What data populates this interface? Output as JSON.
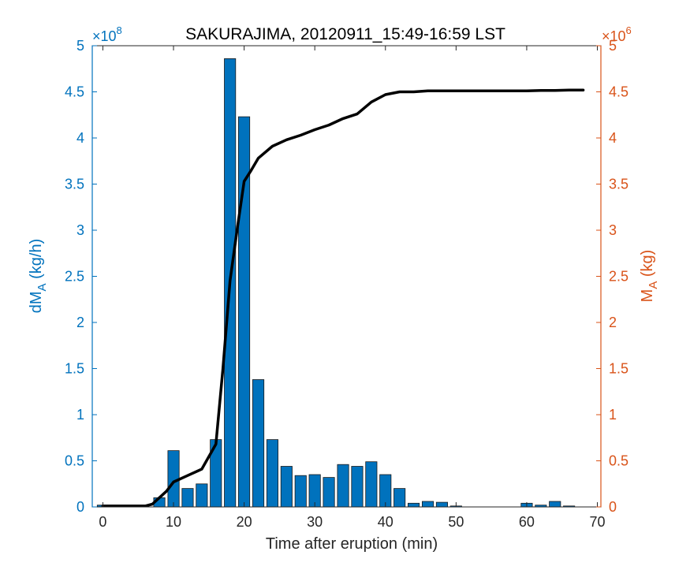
{
  "chart_data": {
    "type": "bar",
    "title": "SAKURAJIMA, 20120911_15:49-16:59 LST",
    "xlabel": "Time after eruption (min)",
    "ylabel_left": {
      "main": "dM",
      "sub": "A",
      "unit": " (kg/h)"
    },
    "ylabel_right": {
      "main": "M",
      "sub": "A",
      "unit": " (kg)"
    },
    "left_exponent": {
      "base": "×10",
      "power": "8"
    },
    "right_exponent": {
      "base": "×10",
      "power": "6"
    },
    "xlim": [
      -1.5,
      70.5
    ],
    "ylim_left": [
      0,
      5
    ],
    "ylim_right": [
      0,
      5
    ],
    "x_ticks": [
      0,
      10,
      20,
      30,
      40,
      50,
      60,
      70
    ],
    "y_ticks_left": [
      "0",
      "0.5",
      "1",
      "1.5",
      "2",
      "2.5",
      "3",
      "3.5",
      "4",
      "4.5",
      "5"
    ],
    "y_ticks_right": [
      "0",
      "0.5",
      "1",
      "1.5",
      "2",
      "2.5",
      "3",
      "3.5",
      "4",
      "4.5",
      "5"
    ],
    "colors": {
      "left_axis": "#0072BD",
      "right_axis": "#D95319",
      "bars": "#0072BD",
      "line": "#000000"
    },
    "series": [
      {
        "axis": "left",
        "kind": "bar",
        "x": [
          0,
          2,
          4,
          6,
          8,
          10,
          12,
          14,
          16,
          18,
          20,
          22,
          24,
          26,
          28,
          30,
          32,
          34,
          36,
          38,
          40,
          42,
          44,
          46,
          48,
          50,
          52,
          54,
          56,
          58,
          60,
          62,
          64,
          66,
          68
        ],
        "values": [
          0.02,
          0,
          0,
          0,
          0.1,
          0.61,
          0.2,
          0.25,
          0.73,
          4.86,
          4.23,
          1.38,
          0.73,
          0.44,
          0.34,
          0.35,
          0.32,
          0.46,
          0.44,
          0.49,
          0.35,
          0.2,
          0.04,
          0.06,
          0.05,
          0.01,
          0,
          0,
          0,
          0,
          0.04,
          0.02,
          0.06,
          0.01,
          0
        ]
      },
      {
        "axis": "right",
        "kind": "line",
        "x": [
          0,
          2,
          4,
          6,
          7,
          8,
          9,
          10,
          12,
          14,
          16,
          17,
          18,
          19,
          20,
          21,
          22,
          24,
          26,
          28,
          30,
          32,
          34,
          36,
          38,
          40,
          42,
          44,
          46,
          48,
          50,
          52,
          54,
          56,
          58,
          60,
          62,
          64,
          66,
          68
        ],
        "values": [
          0.01,
          0.01,
          0.01,
          0.01,
          0.03,
          0.1,
          0.17,
          0.27,
          0.34,
          0.41,
          0.68,
          1.5,
          2.45,
          3.0,
          3.53,
          3.65,
          3.78,
          3.91,
          3.98,
          4.03,
          4.09,
          4.14,
          4.21,
          4.26,
          4.39,
          4.47,
          4.5,
          4.5,
          4.51,
          4.51,
          4.51,
          4.51,
          4.51,
          4.51,
          4.51,
          4.51,
          4.515,
          4.515,
          4.52,
          4.52
        ]
      }
    ]
  }
}
